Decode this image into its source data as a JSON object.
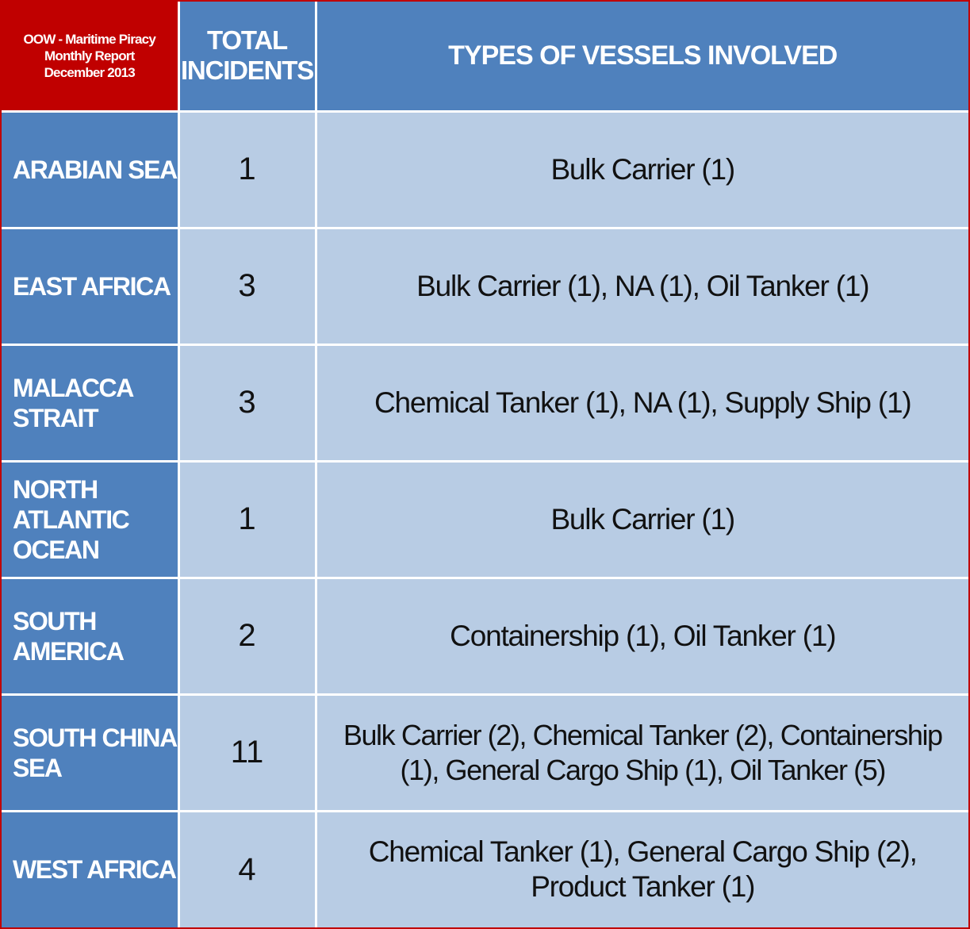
{
  "chart_data": {
    "type": "table",
    "title_lines": [
      "OOW - Maritime Piracy",
      "Monthly Report",
      "December 2013"
    ],
    "columns": {
      "total_lines": [
        "TOTAL",
        "INCIDENTS"
      ],
      "types": "TYPES OF VESSELS INVOLVED"
    },
    "rows": [
      {
        "region_lines": [
          "ARABIAN SEA"
        ],
        "total": "1",
        "types": "Bulk Carrier (1)"
      },
      {
        "region_lines": [
          "EAST AFRICA"
        ],
        "total": "3",
        "types": "Bulk Carrier (1), NA (1), Oil Tanker (1)"
      },
      {
        "region_lines": [
          "MALACCA",
          "STRAIT"
        ],
        "total": "3",
        "types": "Chemical Tanker (1), NA (1), Supply Ship (1)"
      },
      {
        "region_lines": [
          "NORTH",
          "ATLANTIC",
          "OCEAN"
        ],
        "total": "1",
        "types": "Bulk Carrier (1)"
      },
      {
        "region_lines": [
          "SOUTH",
          "AMERICA"
        ],
        "total": "2",
        "types": "Containership (1), Oil Tanker (1)"
      },
      {
        "region_lines": [
          "SOUTH CHINA",
          "SEA"
        ],
        "total": "11",
        "types": "Bulk Carrier (2), Chemical Tanker (2), Containership (1), General Cargo Ship (1), Oil Tanker (5)"
      },
      {
        "region_lines": [
          "WEST AFRICA"
        ],
        "total": "4",
        "types": "Chemical Tanker (1), General Cargo Ship (2), Product Tanker (1)"
      }
    ]
  },
  "colors": {
    "title_bg": "#c00000",
    "header_bg": "#4f81bd",
    "cell_bg": "#b8cce4",
    "header_text": "#ffffff",
    "cell_text": "#111111"
  }
}
